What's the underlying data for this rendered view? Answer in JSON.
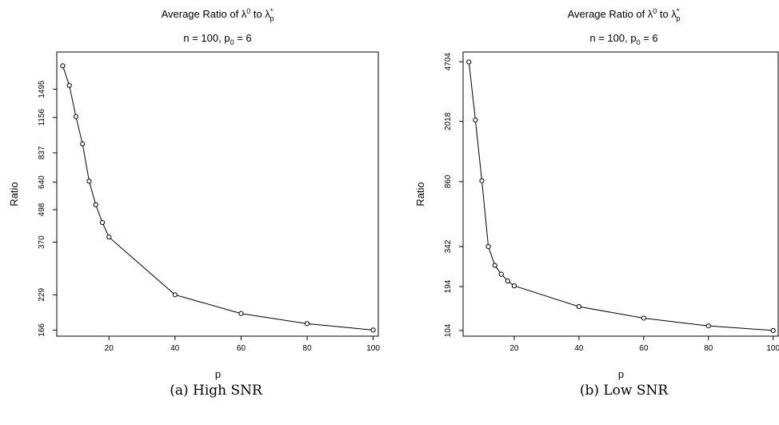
{
  "chart_data": [
    {
      "type": "line",
      "title": "Average Ratio of λ⁰ to λp*",
      "title_parts": {
        "prefix": "Average Ratio of λ",
        "sup1": "0",
        "mid": " to λ",
        "sup2": "*",
        "sub2": "p"
      },
      "subtitle": "n = 100, p₀ = 6",
      "subtitle_parts": {
        "prefix": "n = 100, p",
        "sub": "0",
        "suffix": " = 6"
      },
      "xlabel": "p",
      "ylabel": "Ratio",
      "caption": "(a)  High SNR",
      "x_ticks": [
        20,
        40,
        60,
        80,
        100
      ],
      "y_ticks": [
        166,
        229,
        370,
        498,
        640,
        837,
        1156,
        1495
      ],
      "y_scale": "log",
      "xlim": [
        4.2,
        101.8
      ],
      "ylim": [
        157,
        2100
      ],
      "x": [
        6,
        8,
        10,
        12,
        14,
        16,
        18,
        20,
        40,
        60,
        80,
        100
      ],
      "y": [
        1852,
        1548,
        1165,
        908,
        646,
        521,
        443,
        388,
        229,
        193,
        176,
        166
      ]
    },
    {
      "type": "line",
      "title": "Average Ratio of λ⁰ to λp*",
      "title_parts": {
        "prefix": "Average Ratio of λ",
        "sup1": "0",
        "mid": " to λ",
        "sup2": "*",
        "sub2": "p"
      },
      "subtitle": "n = 100, p₀ = 6",
      "subtitle_parts": {
        "prefix": "n = 100, p",
        "sub": "0",
        "suffix": " = 6"
      },
      "xlabel": "p",
      "ylabel": "Ratio",
      "caption": "(b)  Low SNR",
      "x_ticks": [
        20,
        40,
        60,
        80,
        100
      ],
      "y_ticks": [
        104,
        194,
        342,
        860,
        2018,
        4704
      ],
      "y_scale": "log",
      "xlim": [
        4.2,
        101.8
      ],
      "ylim": [
        96,
        5400
      ],
      "x": [
        6,
        8,
        10,
        12,
        14,
        16,
        18,
        20,
        40,
        60,
        80,
        100
      ],
      "y": [
        4690,
        2060,
        870,
        342,
        262,
        231,
        210,
        196,
        146,
        124,
        111,
        104
      ]
    }
  ]
}
